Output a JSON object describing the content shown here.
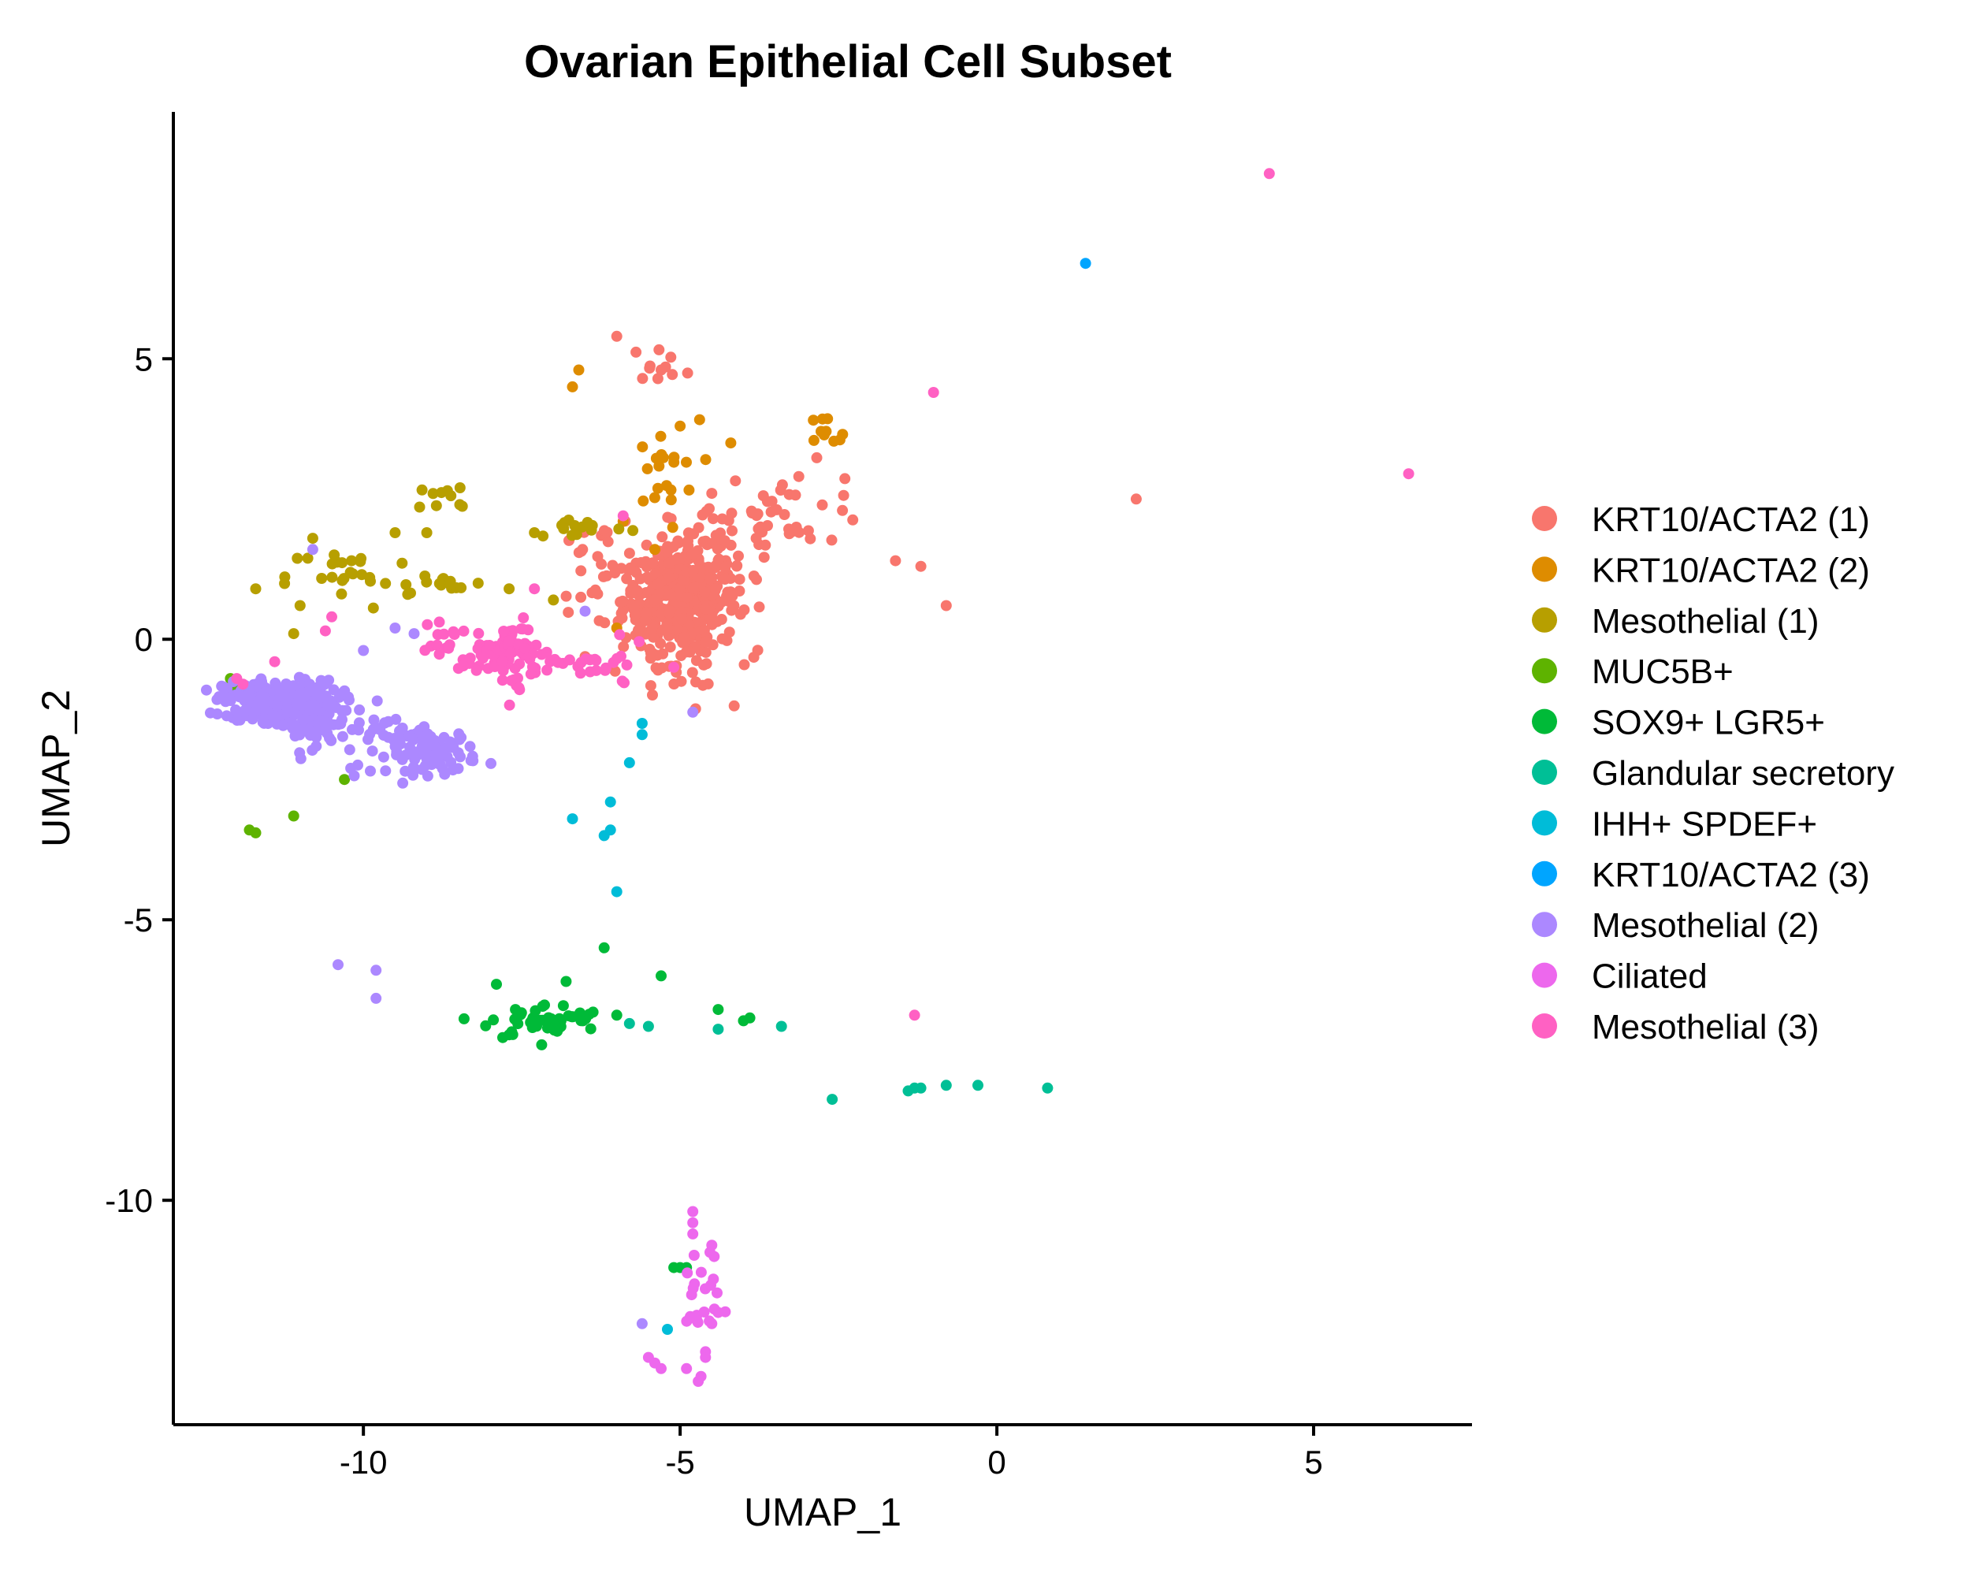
{
  "chart_data": {
    "type": "scatter",
    "title": "Ovarian Epithelial Cell Subset",
    "xlabel": "UMAP_1",
    "ylabel": "UMAP_2",
    "xlim": [
      -13,
      7.5
    ],
    "ylim": [
      -14,
      9.4
    ],
    "xticks": [
      -10,
      -5,
      0,
      5
    ],
    "yticks": [
      5,
      0,
      -5,
      -10
    ],
    "grid": false,
    "legend_position": "right",
    "series": [
      {
        "name": "KRT10/ACTA2 (1)",
        "color": "#F8766D",
        "clusters": [
          {
            "cx": -5.0,
            "cy": 0.7,
            "sx": 0.45,
            "sy": 0.45,
            "n": 420
          },
          {
            "cx": -4.3,
            "cy": 1.6,
            "sx": 0.55,
            "sy": 0.5,
            "n": 50
          },
          {
            "cx": -3.2,
            "cy": 2.4,
            "sx": 0.6,
            "sy": 0.35,
            "n": 30
          },
          {
            "cx": -6.3,
            "cy": 1.3,
            "sx": 0.35,
            "sy": 0.4,
            "n": 25
          },
          {
            "cx": -5.1,
            "cy": -0.6,
            "sx": 0.4,
            "sy": 0.35,
            "n": 25
          },
          {
            "cx": -5.3,
            "cy": 4.9,
            "sx": 0.25,
            "sy": 0.15,
            "n": 10
          }
        ],
        "points": [
          [
            -6.0,
            5.4
          ],
          [
            -5.3,
            4.8
          ],
          [
            -1.6,
            1.4
          ],
          [
            -1.2,
            1.3
          ],
          [
            -0.8,
            0.6
          ],
          [
            2.2,
            2.5
          ],
          [
            -4.5,
            2.6
          ],
          [
            -3.8,
            1.8
          ]
        ]
      },
      {
        "name": "KRT10/ACTA2 (2)",
        "color": "#DE8C00",
        "clusters": [
          {
            "cx": -5.3,
            "cy": 3.0,
            "sx": 0.3,
            "sy": 0.45,
            "n": 20
          },
          {
            "cx": -2.8,
            "cy": 3.6,
            "sx": 0.25,
            "sy": 0.2,
            "n": 10
          }
        ],
        "points": [
          [
            -6.6,
            4.8
          ],
          [
            -6.7,
            4.5
          ],
          [
            -4.2,
            3.5
          ],
          [
            -5.9,
            2.1
          ],
          [
            -6.0,
            0.2
          ],
          [
            -5.4,
            1.6
          ],
          [
            -5.0,
            3.8
          ]
        ]
      },
      {
        "name": "Mesothelial (1)",
        "color": "#B79F00",
        "clusters": [
          {
            "cx": -10.2,
            "cy": 1.1,
            "sx": 0.5,
            "sy": 0.3,
            "n": 25
          },
          {
            "cx": -8.7,
            "cy": 1.0,
            "sx": 0.3,
            "sy": 0.15,
            "n": 12
          },
          {
            "cx": -8.6,
            "cy": 2.5,
            "sx": 0.3,
            "sy": 0.15,
            "n": 10
          },
          {
            "cx": -6.6,
            "cy": 2.0,
            "sx": 0.4,
            "sy": 0.1,
            "n": 15
          }
        ],
        "points": [
          [
            -11.7,
            0.9
          ],
          [
            -11.0,
            0.6
          ],
          [
            -10.8,
            1.8
          ],
          [
            -11.1,
            0.1
          ],
          [
            -9.5,
            1.9
          ],
          [
            -9.0,
            1.9
          ],
          [
            -7.0,
            0.7
          ],
          [
            -7.3,
            1.9
          ],
          [
            -7.7,
            0.9
          ],
          [
            -9.9,
            1.1
          ],
          [
            -9.3,
            0.8
          ]
        ]
      },
      {
        "name": "MUC5B+",
        "color": "#5EB300",
        "clusters": [],
        "points": [
          [
            -11.8,
            -3.4
          ],
          [
            -11.7,
            -3.45
          ],
          [
            -11.1,
            -3.15
          ],
          [
            -10.3,
            -2.5
          ],
          [
            -12.1,
            -0.7
          ],
          [
            -12.0,
            -0.9
          ]
        ]
      },
      {
        "name": "SOX9+ LGR5+",
        "color": "#00BA38",
        "clusters": [
          {
            "cx": -7.1,
            "cy": -6.8,
            "sx": 0.45,
            "sy": 0.15,
            "n": 45
          }
        ],
        "points": [
          [
            -7.9,
            -6.15
          ],
          [
            -7.8,
            -7.1
          ],
          [
            -7.7,
            -7.05
          ],
          [
            -6.2,
            -5.5
          ],
          [
            -5.3,
            -6.0
          ],
          [
            -6.0,
            -6.7
          ],
          [
            -6.8,
            -6.1
          ],
          [
            -4.0,
            -6.8
          ],
          [
            -3.9,
            -6.75
          ],
          [
            -4.4,
            -6.6
          ],
          [
            -7.6,
            -6.6
          ],
          [
            -5.1,
            -11.2
          ],
          [
            -5.0,
            -11.2
          ],
          [
            -4.9,
            -11.2
          ]
        ]
      },
      {
        "name": "Glandular secretory",
        "color": "#00BF96",
        "clusters": [],
        "points": [
          [
            -5.8,
            -6.85
          ],
          [
            -5.5,
            -6.9
          ],
          [
            -4.4,
            -6.95
          ],
          [
            -3.4,
            -6.9
          ],
          [
            -2.6,
            -8.2
          ],
          [
            -1.4,
            -8.05
          ],
          [
            -1.3,
            -8.0
          ],
          [
            -1.2,
            -8.0
          ],
          [
            -0.8,
            -7.95
          ],
          [
            -0.3,
            -7.95
          ],
          [
            0.8,
            -8.0
          ]
        ]
      },
      {
        "name": "IHH+ SPDEF+",
        "color": "#00BCD8",
        "clusters": [],
        "points": [
          [
            -5.6,
            -1.5
          ],
          [
            -5.6,
            -1.7
          ],
          [
            -5.8,
            -2.2
          ],
          [
            -6.1,
            -2.9
          ],
          [
            -6.1,
            -3.4
          ],
          [
            -6.2,
            -3.5
          ],
          [
            -6.0,
            -4.5
          ],
          [
            -6.7,
            -3.2
          ],
          [
            -5.2,
            -12.3
          ]
        ]
      },
      {
        "name": "KRT10/ACTA2 (3)",
        "color": "#00A5FF",
        "clusters": [],
        "points": [
          [
            1.4,
            6.7
          ]
        ]
      },
      {
        "name": "Mesothelial (2)",
        "color": "#AC88FF",
        "clusters": [
          {
            "cx": -11.3,
            "cy": -1.1,
            "sx": 0.45,
            "sy": 0.18,
            "n": 280
          },
          {
            "cx": -10.85,
            "cy": -1.5,
            "sx": 0.3,
            "sy": 0.2,
            "n": 60
          },
          {
            "cx": -8.9,
            "cy": -2.0,
            "sx": 0.35,
            "sy": 0.2,
            "n": 90
          },
          {
            "cx": -9.7,
            "cy": -1.7,
            "sx": 0.35,
            "sy": 0.25,
            "n": 25
          }
        ],
        "points": [
          [
            -10.8,
            1.6
          ],
          [
            -10.4,
            -5.8
          ],
          [
            -9.8,
            -5.9
          ],
          [
            -9.8,
            -6.4
          ],
          [
            -9.5,
            0.2
          ],
          [
            -9.2,
            0.1
          ],
          [
            -10.0,
            -0.2
          ],
          [
            -6.5,
            0.5
          ],
          [
            -5.6,
            -12.2
          ],
          [
            -4.8,
            -1.3
          ],
          [
            -10.2,
            -2.3
          ]
        ]
      },
      {
        "name": "Ciliated",
        "color": "#ED68ED",
        "clusters": [
          {
            "cx": -4.7,
            "cy": -11.8,
            "sx": 0.15,
            "sy": 0.6,
            "n": 25
          }
        ],
        "points": [
          [
            -4.8,
            -10.2
          ],
          [
            -4.8,
            -10.4
          ],
          [
            -4.8,
            -10.6
          ],
          [
            -4.5,
            -10.8
          ],
          [
            -5.5,
            -12.8
          ],
          [
            -5.4,
            -12.9
          ],
          [
            -5.3,
            -13.0
          ],
          [
            -4.9,
            -13.0
          ],
          [
            -4.6,
            -12.7
          ],
          [
            -4.6,
            -12.8
          ],
          [
            -4.5,
            -12.2
          ],
          [
            -4.4,
            -12.0
          ]
        ]
      },
      {
        "name": "Mesothelial (3)",
        "color": "#FF61C3",
        "clusters": [
          {
            "cx": -7.8,
            "cy": -0.3,
            "sx": 0.35,
            "sy": 0.18,
            "n": 60
          },
          {
            "cx": -7.65,
            "cy": 0.1,
            "sx": 0.12,
            "sy": 0.25,
            "n": 20
          },
          {
            "cx": -8.7,
            "cy": -0.1,
            "sx": 0.25,
            "sy": 0.15,
            "n": 15
          },
          {
            "cx": -6.3,
            "cy": -0.5,
            "sx": 0.4,
            "sy": 0.2,
            "n": 25
          },
          {
            "cx": -7.6,
            "cy": -0.9,
            "sx": 0.08,
            "sy": 0.2,
            "n": 8
          }
        ],
        "points": [
          [
            4.3,
            8.3
          ],
          [
            6.5,
            2.95
          ],
          [
            -1.0,
            4.4
          ],
          [
            -1.3,
            -6.7
          ],
          [
            -10.5,
            0.4
          ],
          [
            -10.6,
            0.15
          ],
          [
            -12.0,
            -0.7
          ],
          [
            -11.9,
            -0.8
          ],
          [
            -11.4,
            -0.4
          ],
          [
            -7.3,
            0.9
          ],
          [
            -5.9,
            2.2
          ],
          [
            -5.1,
            -0.5
          ]
        ]
      }
    ]
  }
}
